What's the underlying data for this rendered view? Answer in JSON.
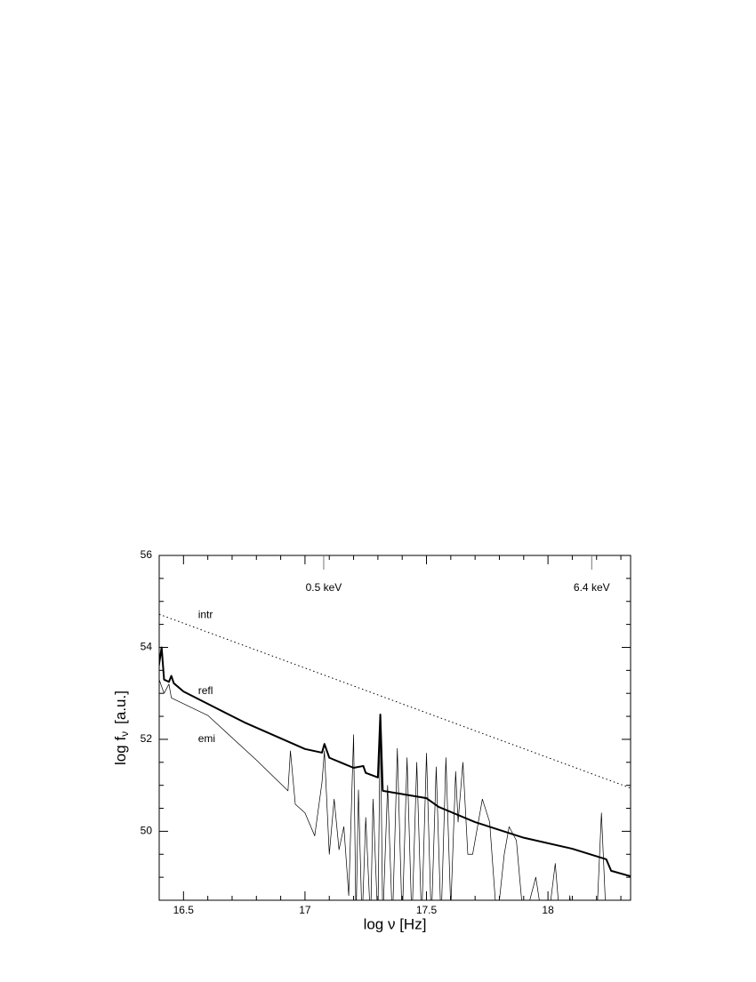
{
  "chart_data": {
    "type": "line",
    "xlabel": {
      "main": "log ν [Hz]"
    },
    "ylabel": {
      "main": "log f",
      "sub": "ν",
      "rest": "[a.u.]"
    },
    "xlim": [
      16.4,
      18.34
    ],
    "ylim": [
      48.5,
      56
    ],
    "xticks": [
      16.5,
      17,
      17.5,
      18
    ],
    "yticks": [
      50,
      52,
      54,
      56
    ],
    "xminorticks": [
      16.4,
      16.6,
      16.7,
      16.8,
      16.9,
      17.1,
      17.2,
      17.3,
      17.4,
      17.6,
      17.7,
      17.8,
      17.9,
      18.1,
      18.2,
      18.3
    ],
    "yminorticks": [
      48.5,
      49,
      49.5,
      50.5,
      51,
      51.5,
      52.5,
      53,
      53.5,
      54.5,
      55,
      55.5
    ],
    "markers": [
      {
        "label": "0.5 keV",
        "x": 17.077
      },
      {
        "label": "6.4 keV",
        "x": 18.18
      }
    ],
    "annotations": [
      {
        "text": "intr",
        "x": 16.56,
        "y": 54.7
      },
      {
        "text": "refl",
        "x": 16.56,
        "y": 53.05
      },
      {
        "text": "emi",
        "x": 16.56,
        "y": 52.0
      }
    ],
    "series": [
      {
        "name": "intr",
        "color": "#000000",
        "style": "dotted",
        "width": 1,
        "x": [
          16.4,
          18.34
        ],
        "y": [
          54.72,
          50.94
        ]
      },
      {
        "name": "refl",
        "color": "#000000",
        "style": "solid",
        "width": 2,
        "x": [
          16.39,
          16.41,
          16.42,
          16.44,
          16.45,
          16.46,
          16.5,
          16.75,
          17.0,
          17.07,
          17.08,
          17.1,
          17.2,
          17.24,
          17.25,
          17.3,
          17.31,
          17.32,
          17.5,
          17.55,
          17.7,
          17.9,
          18.1,
          18.24,
          18.26,
          18.34
        ],
        "y": [
          53.3,
          54.0,
          53.3,
          53.25,
          53.38,
          53.22,
          53.04,
          52.37,
          51.79,
          51.71,
          51.9,
          51.6,
          51.38,
          51.42,
          51.27,
          51.17,
          52.54,
          50.88,
          50.72,
          50.53,
          50.2,
          49.86,
          49.62,
          49.39,
          49.14,
          49.02
        ]
      },
      {
        "name": "emi",
        "color": "#000000",
        "style": "solid",
        "width": 0.7,
        "x": [
          16.4,
          16.42,
          16.44,
          16.45,
          16.6,
          16.8,
          16.93,
          16.94,
          16.96,
          17.0,
          17.04,
          17.07,
          17.08,
          17.1,
          17.12,
          17.14,
          17.16,
          17.18,
          17.2,
          17.21,
          17.22,
          17.235,
          17.25,
          17.27,
          17.28,
          17.3,
          17.31,
          17.32,
          17.34,
          17.36,
          17.38,
          17.4,
          17.42,
          17.44,
          17.46,
          17.48,
          17.5,
          17.52,
          17.54,
          17.56,
          17.58,
          17.6,
          17.62,
          17.63,
          17.65,
          17.67,
          17.69,
          17.73,
          17.76,
          17.79,
          17.82,
          17.84,
          17.87,
          17.9,
          17.95,
          17.97,
          18.0,
          18.03,
          18.05,
          18.08,
          18.09,
          18.1,
          18.2,
          18.22,
          18.24,
          18.34
        ],
        "y": [
          53.3,
          53.0,
          53.2,
          52.9,
          52.52,
          51.55,
          50.88,
          51.75,
          50.59,
          50.4,
          49.9,
          51.07,
          51.75,
          49.5,
          50.7,
          49.6,
          50.1,
          48.6,
          52.1,
          48.0,
          50.9,
          48.0,
          50.3,
          48.0,
          50.7,
          48.0,
          52.5,
          48.0,
          51.0,
          48.0,
          51.8,
          48.0,
          51.6,
          48.0,
          51.5,
          48.0,
          51.7,
          48.0,
          51.4,
          48.0,
          51.6,
          48.3,
          51.3,
          50.2,
          51.5,
          49.5,
          49.5,
          50.7,
          50.2,
          48.0,
          49.5,
          50.1,
          49.8,
          48.0,
          49.0,
          48.3,
          48.0,
          49.3,
          48.0,
          48.0,
          48.6,
          48.0,
          48.0,
          50.4,
          48.0,
          48.0
        ]
      }
    ]
  }
}
